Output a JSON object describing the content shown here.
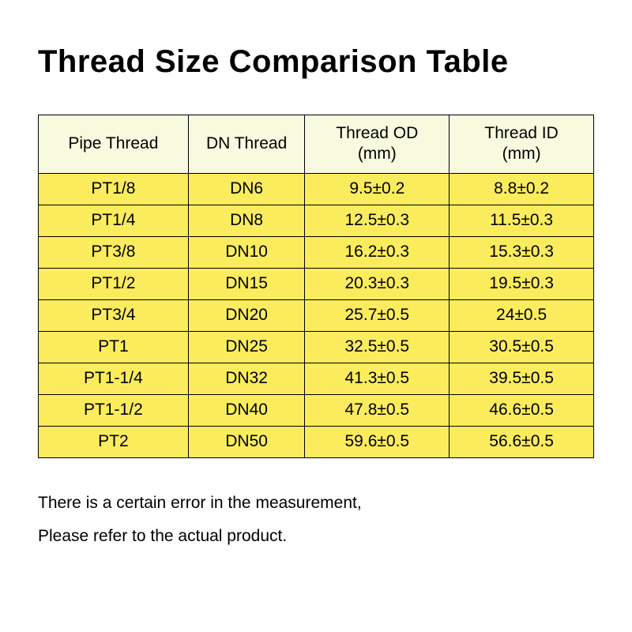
{
  "title": "Thread Size Comparison Table",
  "table": {
    "type": "table",
    "header_bg": "#f7fade",
    "row_bg": "#fbec5d",
    "border_color": "#000000",
    "font_size_header": 21,
    "font_size_cell": 21,
    "columns": [
      {
        "label": "Pipe Thread",
        "width_pct": 27
      },
      {
        "label": "DN Thread",
        "width_pct": 21
      },
      {
        "label": "Thread OD\n(mm)",
        "width_pct": 26
      },
      {
        "label": "Thread ID\n(mm)",
        "width_pct": 26
      }
    ],
    "rows": [
      [
        "PT1/8",
        "DN6",
        "9.5±0.2",
        "8.8±0.2"
      ],
      [
        "PT1/4",
        "DN8",
        "12.5±0.3",
        "11.5±0.3"
      ],
      [
        "PT3/8",
        "DN10",
        "16.2±0.3",
        "15.3±0.3"
      ],
      [
        "PT1/2",
        "DN15",
        "20.3±0.3",
        "19.5±0.3"
      ],
      [
        "PT3/4",
        "DN20",
        "25.7±0.5",
        "24±0.5"
      ],
      [
        "PT1",
        "DN25",
        "32.5±0.5",
        "30.5±0.5"
      ],
      [
        "PT1-1/4",
        "DN32",
        "41.3±0.5",
        "39.5±0.5"
      ],
      [
        "PT1-1/2",
        "DN40",
        "47.8±0.5",
        "46.6±0.5"
      ],
      [
        "PT2",
        "DN50",
        "59.6±0.5",
        "56.6±0.5"
      ]
    ]
  },
  "footnote": {
    "line1": "There is a certain error in the measurement,",
    "line2": "Please refer to the actual product."
  },
  "colors": {
    "page_bg": "#ffffff",
    "text": "#000000"
  }
}
